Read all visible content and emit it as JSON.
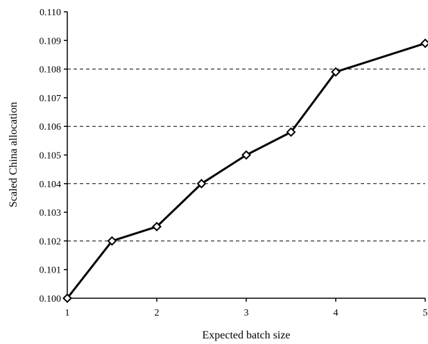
{
  "chart_data": {
    "type": "line",
    "xlabel": "Expected batch size",
    "ylabel": "Scaled China allocation",
    "xlim": [
      1,
      5
    ],
    "ylim": [
      0.1,
      0.11
    ],
    "xticks": [
      "1",
      "2",
      "3",
      "4",
      "5"
    ],
    "yticks": [
      "0.100",
      "0.101",
      "0.102",
      "0.103",
      "0.104",
      "0.105",
      "0.106",
      "0.107",
      "0.108",
      "0.109",
      "0.110"
    ],
    "gridlines_y": [
      0.102,
      0.104,
      0.106,
      0.108
    ],
    "grid_style": "dashed horizontal",
    "marker": "open-diamond",
    "line_color": "#000000",
    "series": [
      {
        "x": [
          1,
          1.5,
          2,
          2.5,
          3,
          3.5,
          4,
          5
        ],
        "y": [
          0.1,
          0.102,
          0.1025,
          0.104,
          0.105,
          0.1058,
          0.1079,
          0.1089
        ]
      }
    ]
  }
}
